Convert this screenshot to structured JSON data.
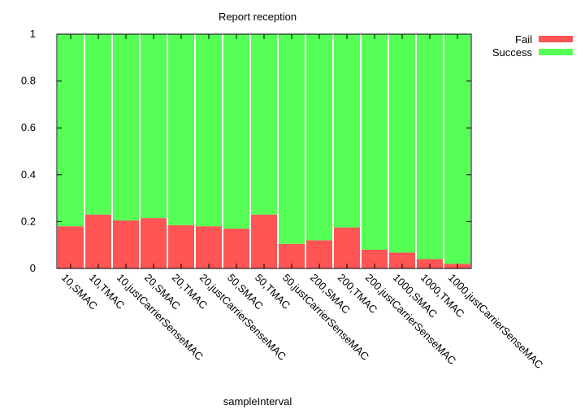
{
  "chart_data": {
    "type": "bar",
    "stacked": true,
    "title": "Report reception",
    "xlabel": "sampleInterval",
    "ylabel": "",
    "ylim": [
      0,
      1
    ],
    "yticks": [
      "0",
      "0.2",
      "0.4",
      "0.6",
      "0.8",
      "1"
    ],
    "categories": [
      "10,SMAC",
      "10,TMAC",
      "10,justCarrierSenseMAC",
      "20,SMAC",
      "20,TMAC",
      "20,justCarrierSenseMAC",
      "50,SMAC",
      "50,TMAC",
      "50,justCarrierSenseMAC",
      "200,SMAC",
      "200,TMAC",
      "200,justCarrierSenseMAC",
      "1000,SMAC",
      "1000,TMAC",
      "1000,justCarrierSenseMAC"
    ],
    "series": [
      {
        "name": "Fail",
        "color": "#ff5555",
        "values": [
          0.18,
          0.23,
          0.205,
          0.215,
          0.185,
          0.18,
          0.17,
          0.23,
          0.105,
          0.12,
          0.175,
          0.08,
          0.068,
          0.04,
          0.02
        ]
      },
      {
        "name": "Success",
        "color": "#55ff55",
        "values": [
          0.82,
          0.77,
          0.795,
          0.785,
          0.815,
          0.82,
          0.83,
          0.77,
          0.895,
          0.88,
          0.825,
          0.92,
          0.932,
          0.96,
          0.98
        ]
      }
    ],
    "legend_position": "top-right outside"
  }
}
